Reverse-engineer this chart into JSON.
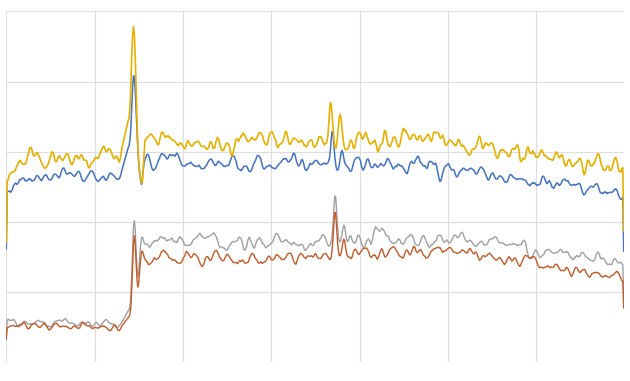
{
  "background_color": "#ffffff",
  "grid_color": "#dedede",
  "line_colors": {
    "blue": "#4472c4",
    "yellow": "#e8b000",
    "brown": "#c55a28",
    "gray": "#a0a0a0"
  },
  "line_widths": {
    "blue": 1.1,
    "yellow": 1.2,
    "brown": 1.0,
    "gray": 1.0
  },
  "n_points": 700,
  "figsize": [
    6.3,
    3.81
  ],
  "dpi": 100,
  "xlim": [
    0,
    699
  ],
  "ylim": [
    0,
    1.0
  ]
}
